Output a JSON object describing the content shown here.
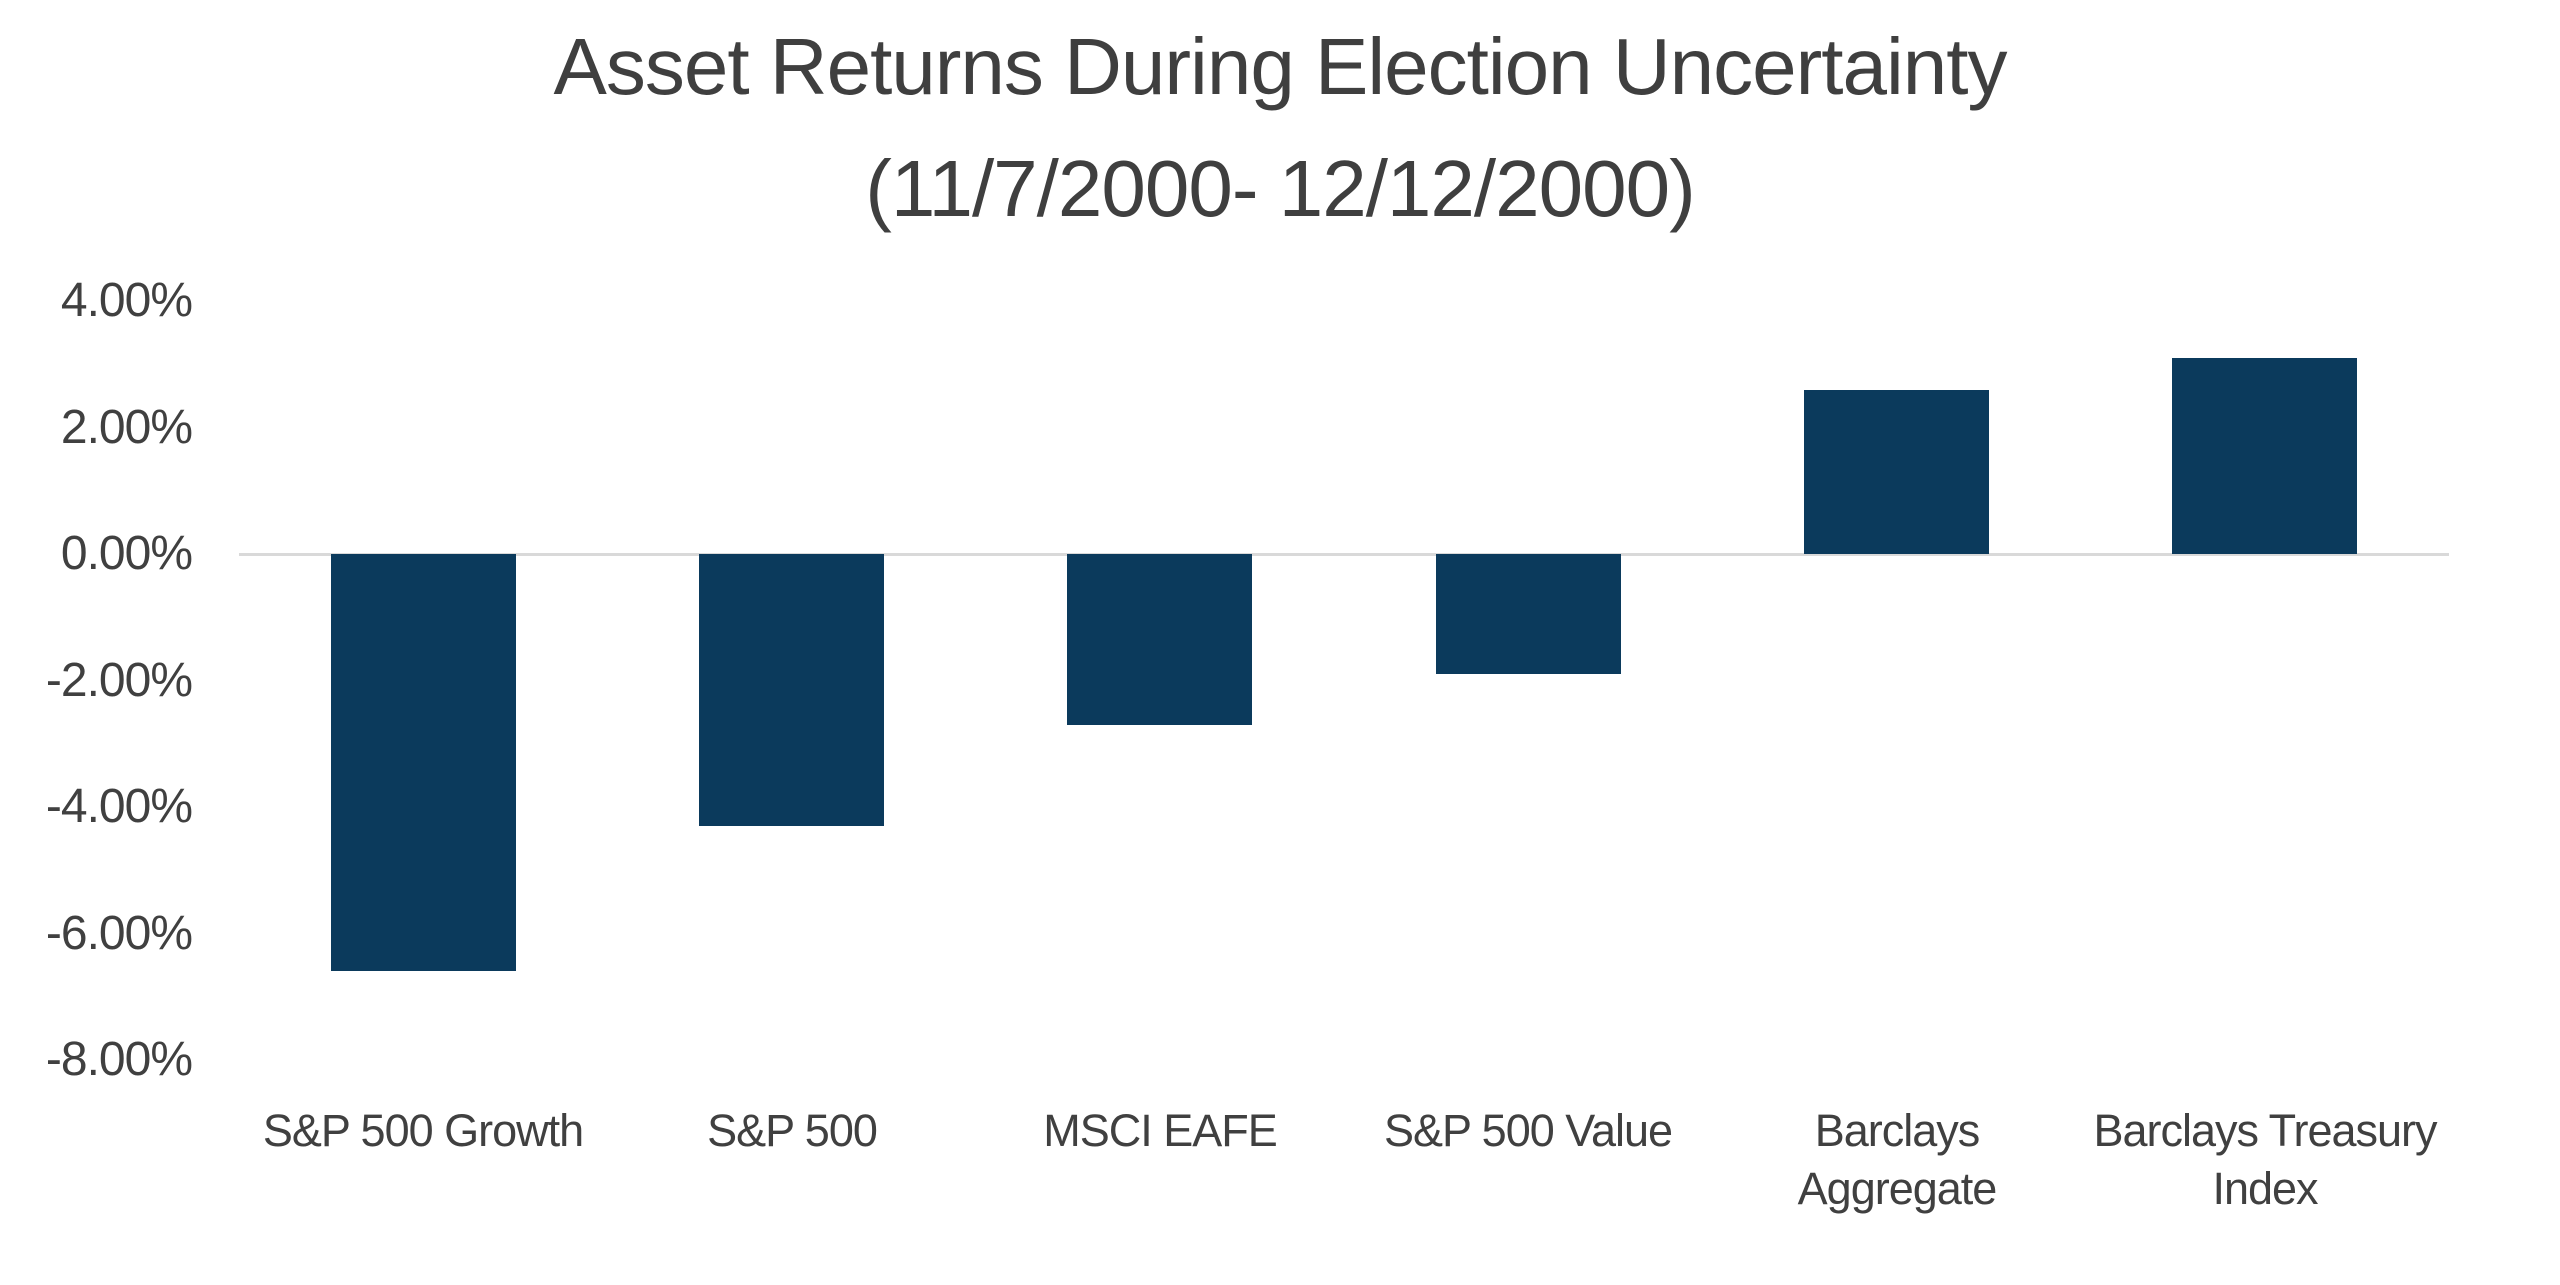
{
  "chart_data": {
    "type": "bar",
    "title": "Asset Returns During Election Uncertainty",
    "subtitle": "(11/7/2000- 12/12/2000)",
    "categories": [
      "S&P 500 Growth",
      "S&P 500",
      "MSCI EAFE",
      "S&P 500 Value",
      "Barclays Aggregate",
      "Barclays Treasury Index"
    ],
    "category_lines": [
      [
        "S&P 500 Growth"
      ],
      [
        "S&P 500"
      ],
      [
        "MSCI EAFE"
      ],
      [
        "S&P 500 Value"
      ],
      [
        "Barclays",
        "Aggregate"
      ],
      [
        "Barclays Treasury",
        "Index"
      ]
    ],
    "values": [
      -6.6,
      -4.3,
      -2.7,
      -1.9,
      2.6,
      3.1
    ],
    "unit": "%",
    "xlabel": "",
    "ylabel": "",
    "ylim": [
      -8,
      4
    ],
    "ytick_step": 2,
    "ytick_labels": [
      "4.00%",
      "2.00%",
      "0.00%",
      "-2.00%",
      "-4.00%",
      "-6.00%",
      "-8.00%"
    ],
    "grid": false,
    "legend": "none",
    "colors": {
      "bar": "#0b3a5c",
      "baseline": "#d9d9d9",
      "title_text": "#3f3f3f",
      "label_text": "#404040",
      "background": "#ffffff"
    }
  }
}
